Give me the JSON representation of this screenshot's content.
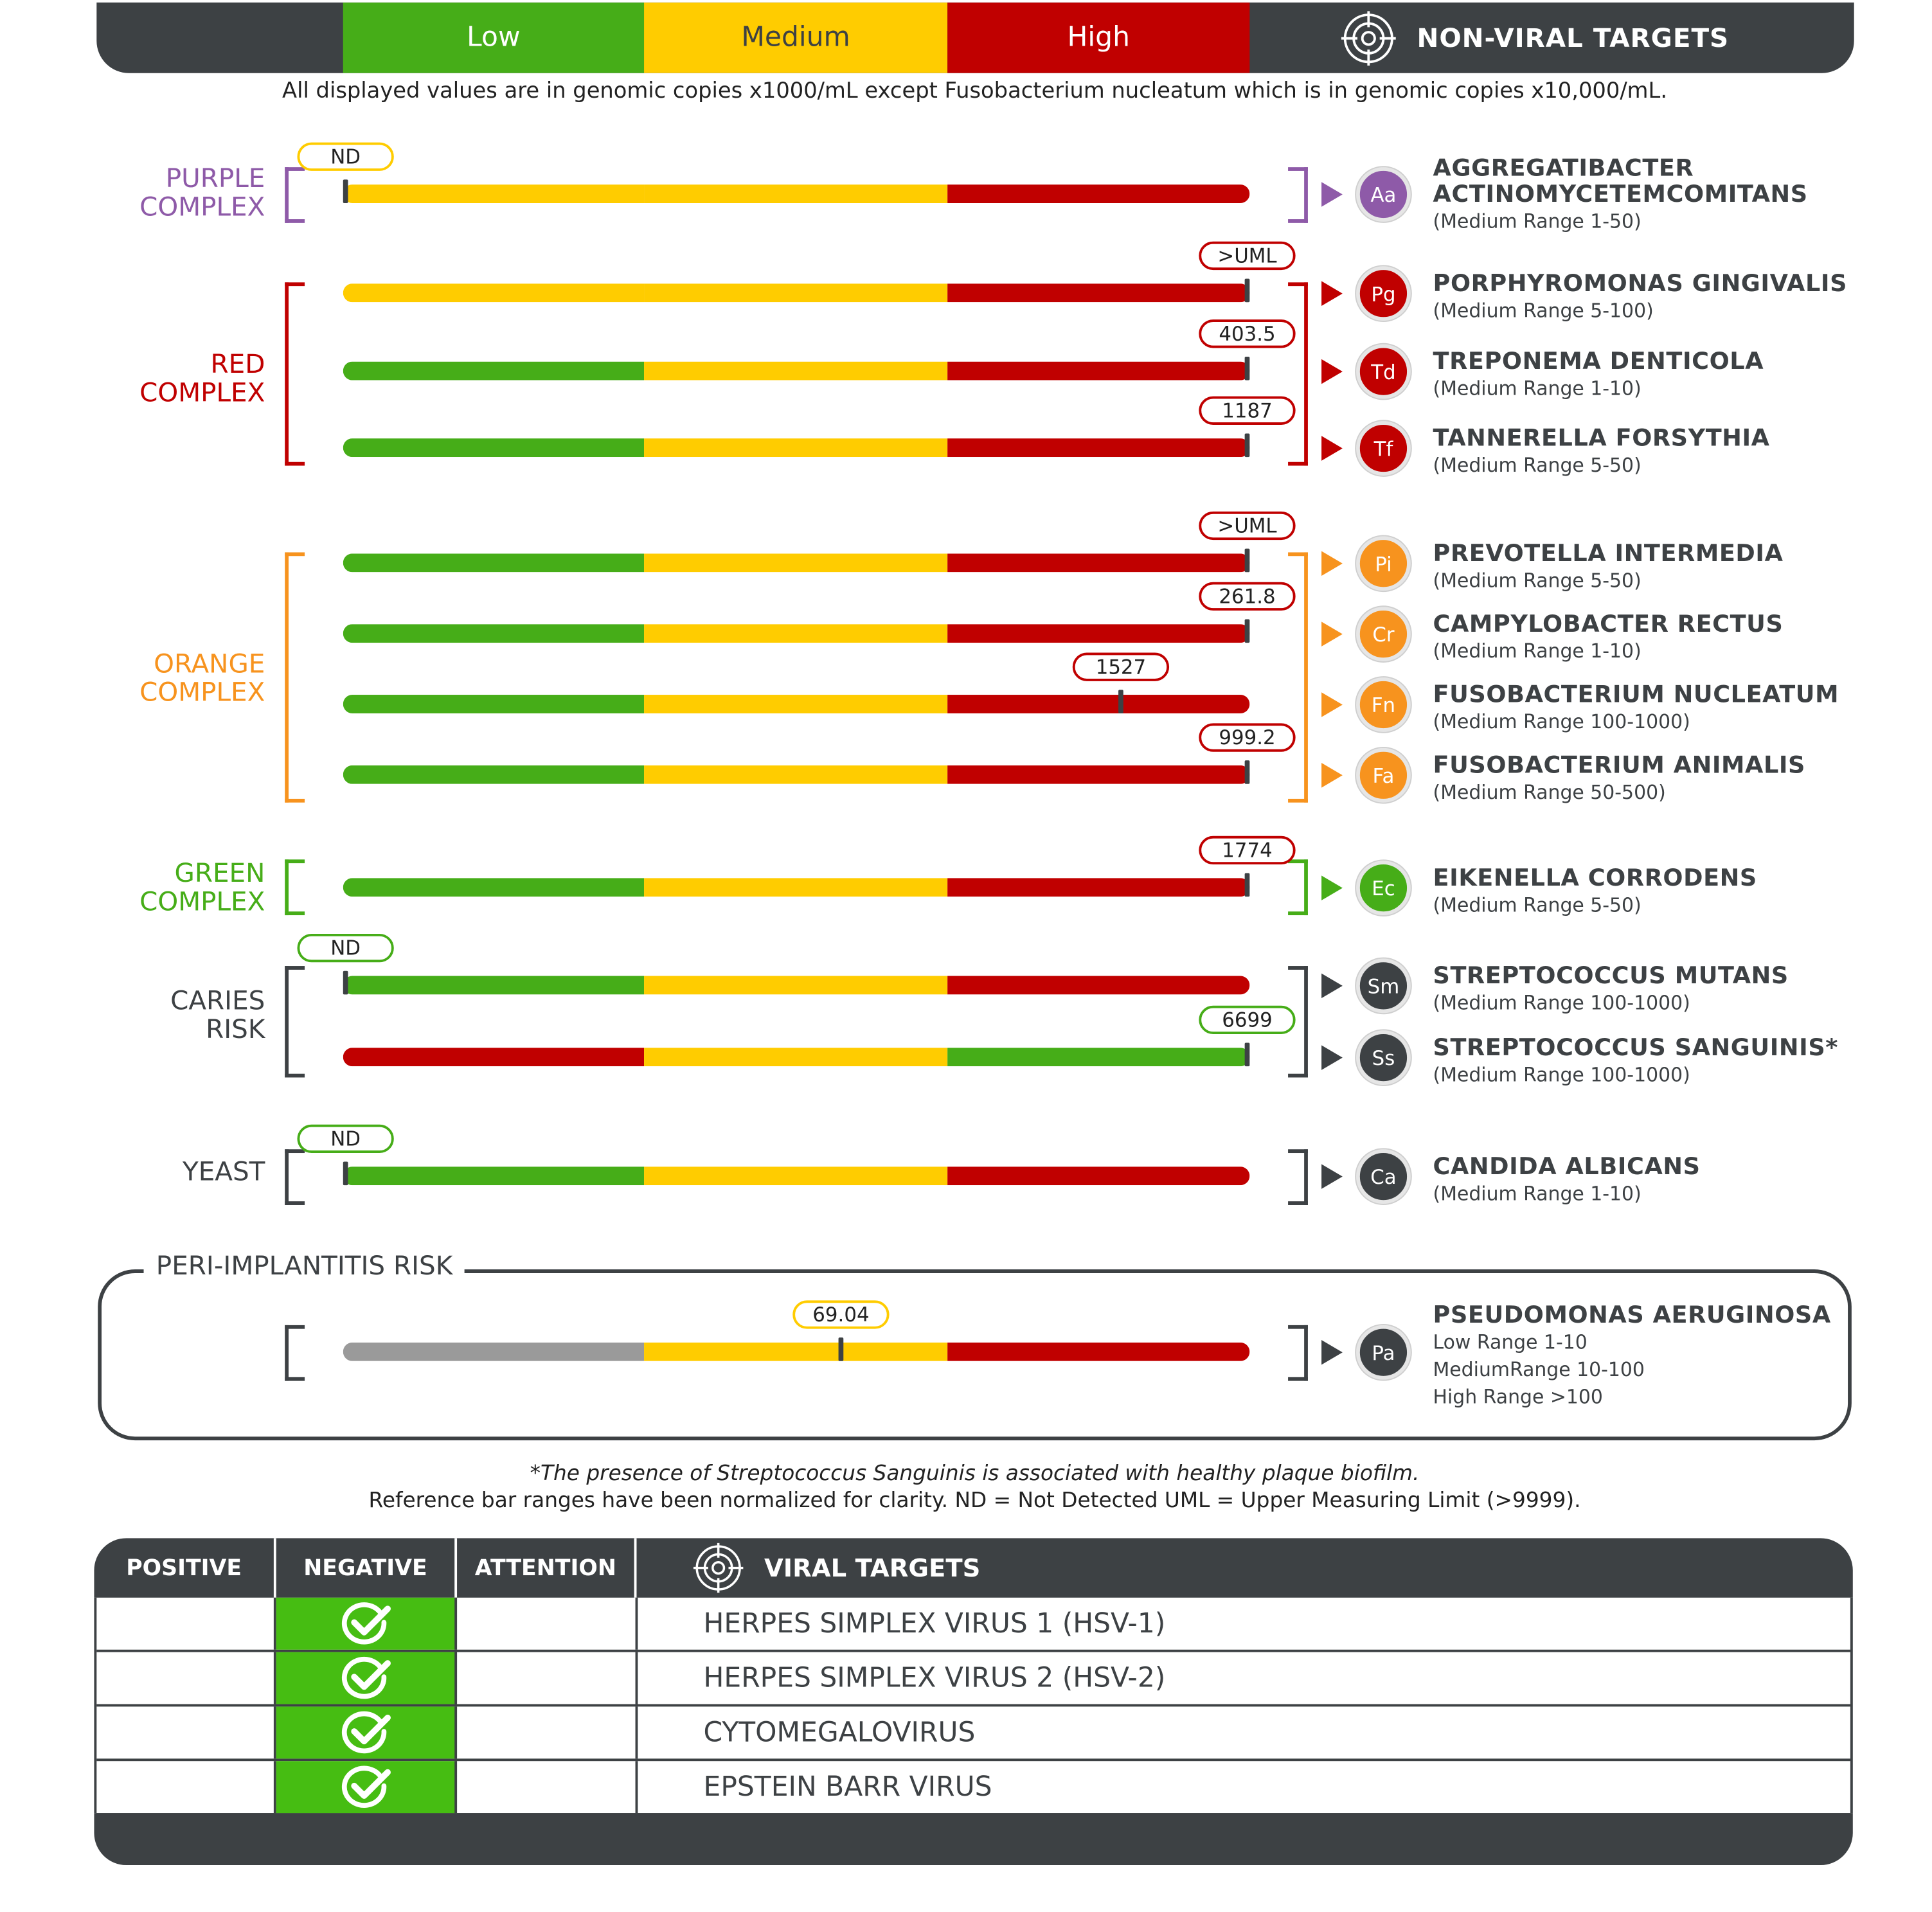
{
  "legend": {
    "low": "Low",
    "medium": "Medium",
    "high": "High",
    "title": "NON-VIRAL TARGETS",
    "colors": {
      "low": "#46ad18",
      "medium": "#ffcc00",
      "high": "#c00000",
      "header_bg": "#3d4144"
    }
  },
  "note": "All displayed values are in genomic copies x1000/mL except Fusobacterium nucleatum which is in genomic copies x10,000/mL.",
  "groups": [
    {
      "label1": "PURPLE",
      "label2": "COMPLEX",
      "color": "#8e5aa8"
    },
    {
      "label1": "RED",
      "label2": "COMPLEX",
      "color": "#c00000"
    },
    {
      "label1": "ORANGE",
      "label2": "COMPLEX",
      "color": "#f7931e"
    },
    {
      "label1": "GREEN",
      "label2": "COMPLEX",
      "color": "#46ad18"
    },
    {
      "label1": "CARIES",
      "label2": "RISK",
      "color": "#3d4144"
    },
    {
      "label1": "YEAST",
      "label2": "",
      "color": "#3d4144"
    }
  ],
  "organisms": [
    {
      "abbr": "Aa",
      "name1": "AGGREGATIBACTER",
      "name2": "ACTINOMYCETEMCOMITANS",
      "range": "(Medium Range 1-50)",
      "value": "ND",
      "level": 0.0,
      "segments": [
        "yellow",
        "yellow",
        "red"
      ]
    },
    {
      "abbr": "Pg",
      "name1": "PORPHYROMONAS GINGIVALIS",
      "name2": "",
      "range": "(Medium Range 5-100)",
      "value": ">UML",
      "level": 1.0,
      "segments": [
        "yellow",
        "yellow",
        "red"
      ]
    },
    {
      "abbr": "Td",
      "name1": "TREPONEMA DENTICOLA",
      "name2": "",
      "range": "(Medium Range 1-10)",
      "value": "403.5",
      "level": 1.0,
      "segments": [
        "green",
        "yellow",
        "red"
      ]
    },
    {
      "abbr": "Tf",
      "name1": "TANNERELLA FORSYTHIA",
      "name2": "",
      "range": "(Medium Range 5-50)",
      "value": "1187",
      "level": 1.0,
      "segments": [
        "green",
        "yellow",
        "red"
      ]
    },
    {
      "abbr": "Pi",
      "name1": "PREVOTELLA INTERMEDIA",
      "name2": "",
      "range": "(Medium Range 5-50)",
      "value": ">UML",
      "level": 1.0,
      "segments": [
        "green",
        "yellow",
        "red"
      ]
    },
    {
      "abbr": "Cr",
      "name1": "CAMPYLOBACTER RECTUS",
      "name2": "",
      "range": "(Medium Range 1-10)",
      "value": "261.8",
      "level": 1.0,
      "segments": [
        "green",
        "yellow",
        "red"
      ]
    },
    {
      "abbr": "Fn",
      "name1": "FUSOBACTERIUM NUCLEATUM",
      "name2": "",
      "range": "(Medium Range 100-1000)",
      "value": "1527",
      "level": 0.86,
      "segments": [
        "green",
        "yellow",
        "red"
      ]
    },
    {
      "abbr": "Fa",
      "name1": "FUSOBACTERIUM ANIMALIS",
      "name2": "",
      "range": "(Medium Range 50-500)",
      "value": "999.2",
      "level": 1.0,
      "segments": [
        "green",
        "yellow",
        "red"
      ]
    },
    {
      "abbr": "Ec",
      "name1": "EIKENELLA CORRODENS",
      "name2": "",
      "range": "(Medium Range 5-50)",
      "value": "1774",
      "level": 1.0,
      "segments": [
        "green",
        "yellow",
        "red"
      ]
    },
    {
      "abbr": "Sm",
      "name1": "STREPTOCOCCUS MUTANS",
      "name2": "",
      "range": "(Medium Range 100-1000)",
      "value": "ND",
      "level": 0.0,
      "segments": [
        "green",
        "yellow",
        "red"
      ]
    },
    {
      "abbr": "Ss",
      "name1": "STREPTOCOCCUS SANGUINIS*",
      "name2": "",
      "range": "(Medium Range 100-1000)",
      "value": "6699",
      "level": 1.0,
      "segments": [
        "red",
        "yellow",
        "green"
      ]
    },
    {
      "abbr": "Ca",
      "name1": "CANDIDA ALBICANS",
      "name2": "",
      "range": "(Medium Range 1-10)",
      "value": "ND",
      "level": 0.0,
      "segments": [
        "green",
        "yellow",
        "red"
      ]
    }
  ],
  "peri": {
    "title": "PERI-IMPLANTITIS RISK",
    "abbr": "Pa",
    "name": "PSEUDOMONAS AERUGINOSA",
    "range1": "Low Range 1-10",
    "range2": "MediumRange 10-100",
    "range3": "High Range >100",
    "value": "69.04",
    "level": 0.55,
    "segments": [
      "gray",
      "yellow",
      "red"
    ]
  },
  "footnote1": "*The presence of Streptococcus Sanguinis is associated with healthy plaque biofilm.",
  "footnote2": "Reference bar ranges have been normalized for clarity. ND = Not Detected UML = Upper Measuring Limit (>9999).",
  "viral": {
    "headers": {
      "positive": "POSITIVE",
      "negative": "NEGATIVE",
      "attention": "ATTENTION",
      "title": "VIRAL TARGETS"
    },
    "rows": [
      {
        "name": "HERPES SIMPLEX VIRUS 1 (HSV-1)",
        "result": "negative"
      },
      {
        "name": "HERPES SIMPLEX VIRUS 2 (HSV-2)",
        "result": "negative"
      },
      {
        "name": "CYTOMEGALOVIRUS",
        "result": "negative"
      },
      {
        "name": "EPSTEIN BARR VIRUS",
        "result": "negative"
      }
    ]
  }
}
